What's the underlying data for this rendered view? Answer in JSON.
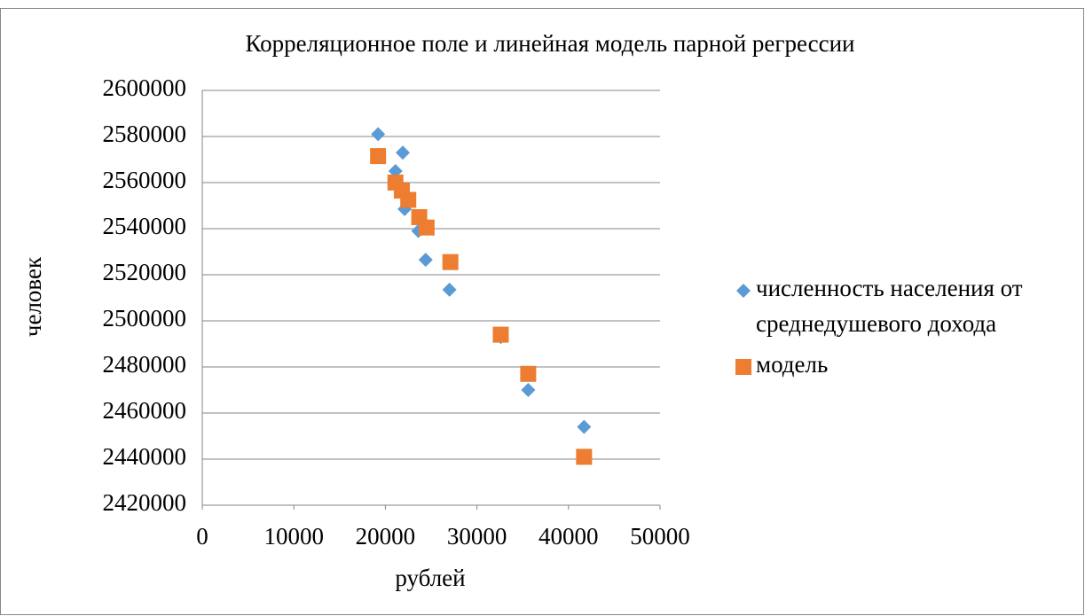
{
  "chart_data": {
    "type": "scatter",
    "title": "Корреляционное поле и линейная модель парной регрессии",
    "x_label": "рублей",
    "y_label": "человек",
    "xlim": [
      0,
      50000
    ],
    "xticks": [
      0,
      10000,
      20000,
      30000,
      40000,
      50000
    ],
    "ylim": [
      2420000,
      2600000
    ],
    "yticks": [
      2420000,
      2440000,
      2460000,
      2480000,
      2500000,
      2520000,
      2540000,
      2560000,
      2580000,
      2600000
    ],
    "grid": true,
    "legend": "right",
    "series": [
      {
        "name": "численность населения от среднедушевого дохода",
        "color": "#5b9bd5",
        "marker": "diamond",
        "x": [
          19200,
          21900,
          21100,
          22100,
          22500,
          23600,
          24400,
          27000,
          32600,
          35600,
          41700
        ],
        "values": [
          2581000,
          2573000,
          2565000,
          2548500,
          2551000,
          2539000,
          2526500,
          2513500,
          2493000,
          2470000,
          2454000
        ]
      },
      {
        "name": "модель",
        "color": "#ed7d31",
        "marker": "square",
        "x": [
          19200,
          21100,
          21800,
          22500,
          23700,
          24500,
          27100,
          32600,
          35600,
          41700
        ],
        "values": [
          2571500,
          2560000,
          2556500,
          2552500,
          2545000,
          2540500,
          2525500,
          2494000,
          2477000,
          2441000
        ]
      }
    ]
  }
}
